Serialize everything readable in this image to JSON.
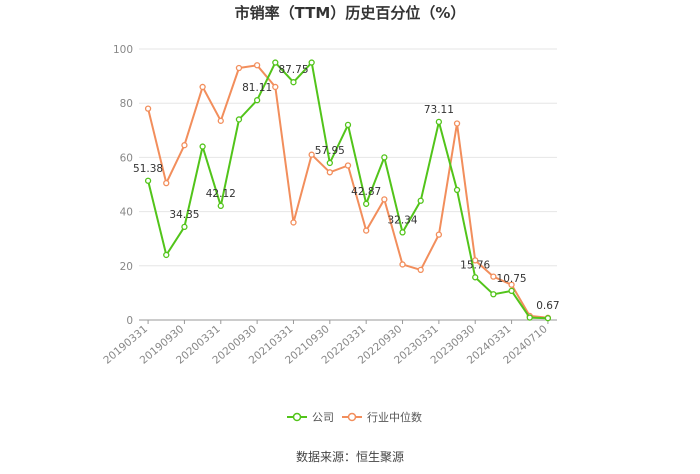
{
  "chart_data": {
    "type": "line",
    "title": "市销率（TTM）历史百分位（%）",
    "source": "数据来源：恒生聚源",
    "ylim": [
      0,
      100
    ],
    "yticks": [
      0,
      20,
      40,
      60,
      80,
      100
    ],
    "grid": true,
    "legend_position": "bottom",
    "x_tick_labels": [
      "20190331",
      "20190930",
      "20200331",
      "20200930",
      "20210331",
      "20210930",
      "20220331",
      "20220930",
      "20230331",
      "20230930",
      "20240331",
      "20240710"
    ],
    "series": [
      {
        "name": "公司",
        "color": "#52c41a",
        "values": [
          51.38,
          24,
          34.35,
          64,
          42.12,
          74,
          81.11,
          95,
          87.75,
          95,
          57.95,
          72,
          42.87,
          60,
          32.34,
          44,
          73.11,
          48,
          15.76,
          9.5,
          10.75,
          0.9,
          0.67
        ],
        "labels": {
          "0": "51.38",
          "2": "34.35",
          "4": "42.12",
          "6": "81.11",
          "8": "87.75",
          "10": "57.95",
          "12": "42.87",
          "14": "32.34",
          "16": "73.11",
          "18": "15.76",
          "20": "10.75",
          "22": "0.67"
        }
      },
      {
        "name": "行业中位数",
        "color": "#f28e5c",
        "values": [
          78,
          50.5,
          64.5,
          86,
          73.5,
          93,
          94,
          86,
          36,
          61,
          54.5,
          57,
          33,
          44.5,
          20.5,
          18.5,
          31.5,
          72.5,
          22,
          16,
          13,
          1.5,
          0.8
        ]
      }
    ]
  }
}
